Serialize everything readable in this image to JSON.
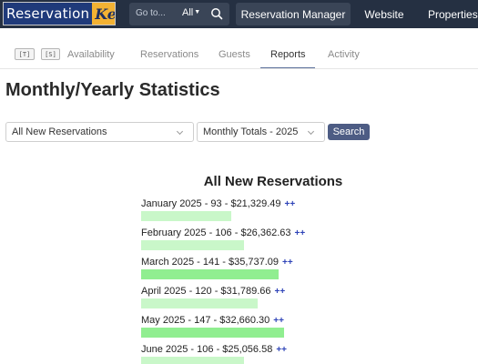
{
  "logo": {
    "part1": "Reservation",
    "part2": "Key"
  },
  "search": {
    "placeholder": "Go to...",
    "scope": "All"
  },
  "topnav": [
    "Reservation Manager",
    "Website",
    "Properties"
  ],
  "tabs": {
    "shortcuts": [
      "[T]",
      "[S]"
    ],
    "items": [
      "Availability",
      "Reservations",
      "Guests",
      "Reports",
      "Activity"
    ],
    "active": "Reports"
  },
  "page_title": "Monthly/Yearly Statistics",
  "filters": {
    "report_type": "All New Reservations",
    "range": "Monthly Totals - 2025",
    "search_label": "Search"
  },
  "report": {
    "heading": "All New Reservations",
    "plus": "++",
    "max_count": 147,
    "rows": [
      {
        "label": "January 2025 - 93 - $21,329.49",
        "count": 93
      },
      {
        "label": "February 2025 - 106 - $26,362.63",
        "count": 106
      },
      {
        "label": "March 2025 - 141 - $35,737.09",
        "count": 141
      },
      {
        "label": "April 2025 - 120 - $31,789.66",
        "count": 120
      },
      {
        "label": "May 2025 - 147 - $32,660.30",
        "count": 147
      },
      {
        "label": "June 2025 - 106 - $25,056.58",
        "count": 106
      }
    ]
  },
  "colors": {
    "topnav_bg": "#253042",
    "bar_fill": "#c9f7c9",
    "bar_fill_peak": "#90ee90",
    "plus_link": "#2f44b8",
    "search_button": "#4d5c84"
  }
}
